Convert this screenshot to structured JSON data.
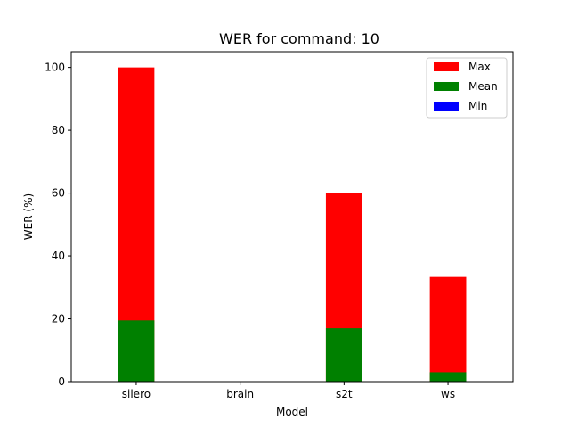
{
  "chart_data": {
    "type": "bar",
    "title": "WER for command: 10",
    "xlabel": "Model",
    "ylabel": "WER (%)",
    "categories": [
      "silero",
      "brain",
      "s2t",
      "ws"
    ],
    "ylim": [
      0,
      105
    ],
    "yticks": [
      0,
      20,
      40,
      60,
      80,
      100
    ],
    "series": [
      {
        "name": "Max",
        "color": "#ff0000",
        "values": [
          100,
          0,
          60,
          33.3
        ]
      },
      {
        "name": "Mean",
        "color": "#008000",
        "values": [
          19.5,
          0,
          17,
          3
        ]
      },
      {
        "name": "Min",
        "color": "#0000ff",
        "values": [
          0,
          0,
          0,
          0
        ]
      }
    ],
    "legend_position": "top-right",
    "grid": false
  }
}
